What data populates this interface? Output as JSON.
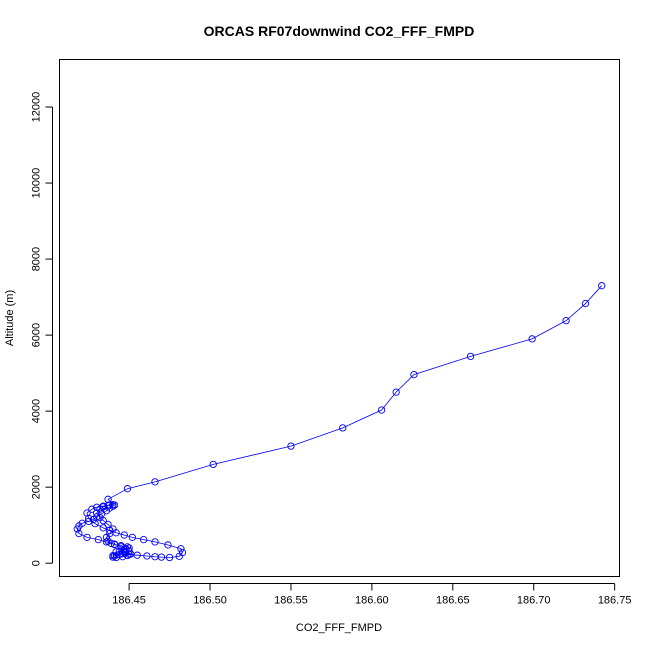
{
  "chart_data": {
    "type": "line",
    "title": "ORCAS RF07downwind CO2_FFF_FMPD",
    "xlabel": "CO2_FFF_FMPD",
    "ylabel": "Altitude (m)",
    "xlim": [
      186.407,
      186.753
    ],
    "ylim": [
      -350,
      13250
    ],
    "x_ticks": [
      186.45,
      186.5,
      186.55,
      186.6,
      186.65,
      186.7,
      186.75
    ],
    "x_tick_labels": [
      "186.45",
      "186.50",
      "186.55",
      "186.60",
      "186.65",
      "186.70",
      "186.75"
    ],
    "y_ticks": [
      0,
      2000,
      4000,
      6000,
      8000,
      10000,
      12000
    ],
    "y_tick_labels": [
      "0",
      "2000",
      "4000",
      "6000",
      "8000",
      "10000",
      "12000"
    ],
    "grid": false,
    "marker": "open-circle",
    "color": "#0000ff",
    "series": [
      {
        "x": [
          186.742,
          186.732,
          186.72,
          186.699,
          186.661,
          186.626,
          186.615,
          186.606,
          186.582,
          186.55,
          186.502,
          186.466,
          186.449,
          186.437,
          186.441,
          186.44,
          186.438,
          186.436,
          186.433,
          186.43,
          186.428,
          186.425,
          186.421,
          186.419,
          186.418,
          186.419,
          186.424,
          186.431,
          186.436,
          186.441,
          186.445,
          186.448,
          186.45,
          186.447,
          186.444,
          186.441,
          186.44,
          186.442,
          186.446,
          186.449,
          186.451,
          186.448,
          186.444,
          186.447,
          186.45,
          186.449,
          186.445,
          186.441,
          186.439,
          186.437,
          186.436,
          186.438,
          186.44,
          186.437,
          186.434,
          186.432,
          186.43,
          186.432,
          186.434,
          186.437,
          186.44,
          186.438,
          186.434,
          186.43,
          186.427,
          186.424,
          186.425,
          186.429,
          186.434,
          186.438,
          186.442,
          186.447,
          186.452,
          186.459,
          186.466,
          186.474,
          186.482,
          186.483,
          186.481,
          186.475,
          186.47,
          186.466,
          186.461,
          186.455,
          186.45,
          186.446,
          186.442,
          186.44
        ],
        "y": [
          7300,
          6830,
          6380,
          5900,
          5440,
          4960,
          4500,
          4030,
          3560,
          3080,
          2600,
          2140,
          1960,
          1680,
          1530,
          1500,
          1450,
          1380,
          1300,
          1220,
          1150,
          1100,
          1050,
          980,
          900,
          780,
          680,
          620,
          560,
          500,
          430,
          380,
          320,
          280,
          230,
          190,
          160,
          150,
          170,
          200,
          240,
          280,
          320,
          360,
          400,
          430,
          460,
          490,
          520,
          580,
          680,
          780,
          900,
          1020,
          1120,
          1200,
          1320,
          1420,
          1480,
          1520,
          1540,
          1530,
          1500,
          1470,
          1420,
          1320,
          1180,
          1040,
          930,
          860,
          800,
          740,
          680,
          620,
          560,
          480,
          380,
          280,
          180,
          150,
          160,
          170,
          190,
          210,
          230,
          250,
          300,
          200
        ]
      }
    ]
  }
}
